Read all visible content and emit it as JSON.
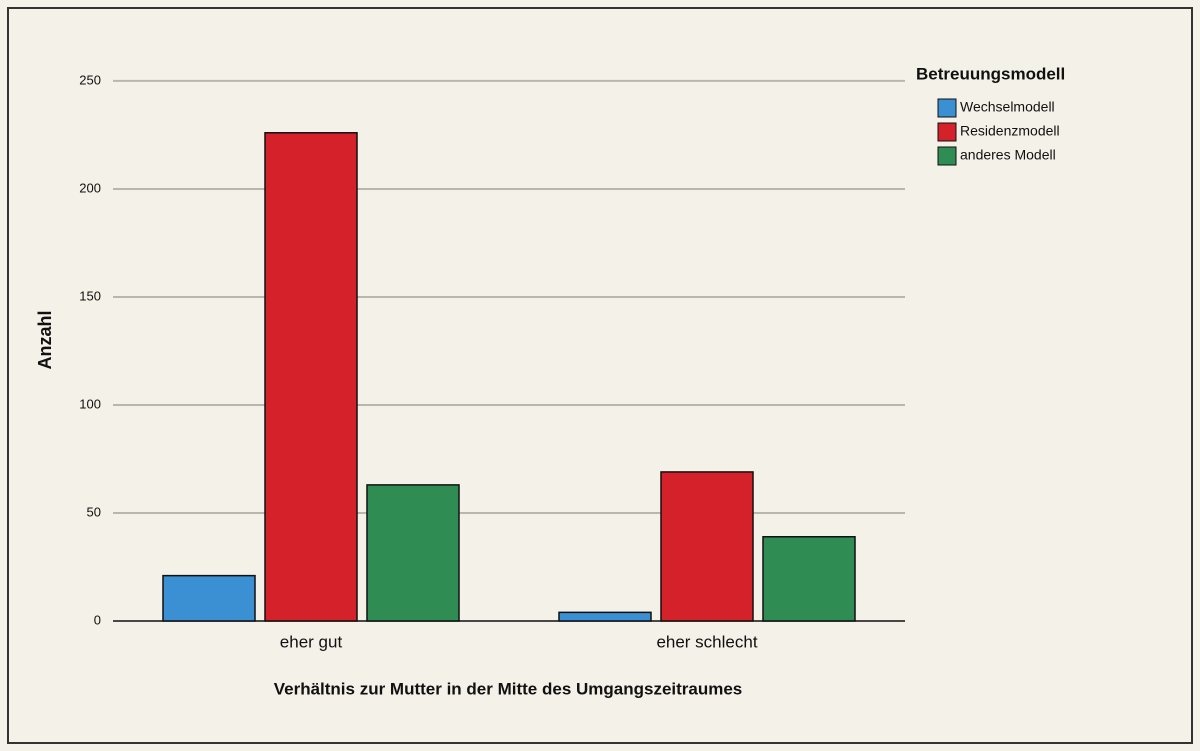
{
  "chart_data": {
    "type": "bar",
    "categories": [
      "eher gut",
      "eher schlecht"
    ],
    "series": [
      {
        "name": "Wechselmodell",
        "color": "#3b8fd3",
        "values": [
          21,
          4
        ]
      },
      {
        "name": "Residenzmodell",
        "color": "#d52129",
        "values": [
          226,
          69
        ]
      },
      {
        "name": "anderes Modell",
        "color": "#2f8c52",
        "values": [
          63,
          39
        ]
      }
    ],
    "ylim": [
      0,
      262
    ],
    "yticks": [
      0,
      50,
      100,
      150,
      200,
      250
    ],
    "grid": true,
    "y_label": "Anzahl",
    "x_label": "Verhältnis zur Mutter in der Mitte des Umgangszeitraumes",
    "legend_title": "Betreuungsmodell",
    "legend_position": "upper right"
  }
}
